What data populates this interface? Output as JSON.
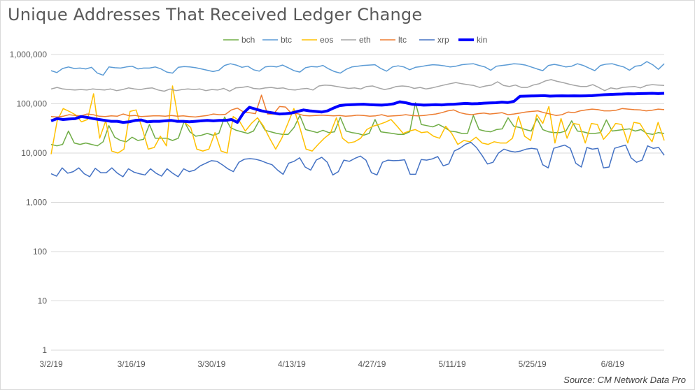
{
  "chart_data": {
    "type": "line",
    "title": "Unique Addresses That Received Ledger Change",
    "xlabel": "",
    "ylabel": "",
    "yscale": "log",
    "ylim": [
      1,
      1000000
    ],
    "y_ticks": [
      "1",
      "10",
      "100",
      "1,000",
      "10,000",
      "100,000",
      "1,000,000"
    ],
    "x_ticks": [
      "3/2/19",
      "3/16/19",
      "3/30/19",
      "4/13/19",
      "4/27/19",
      "5/11/19",
      "5/25/19",
      "6/8/19"
    ],
    "x_start": "2019-03-02",
    "x_end": "2019-06-17",
    "grid": "horizontal",
    "legend_position": "top",
    "source": "Source: CM Network Data Pro",
    "series": [
      {
        "name": "bch",
        "color": "#70ad47",
        "width": 1.5,
        "values": [
          15000,
          14000,
          15000,
          28000,
          16000,
          15000,
          16000,
          15000,
          14000,
          17000,
          36000,
          21000,
          18000,
          17000,
          21000,
          18000,
          19000,
          38000,
          20000,
          20000,
          20000,
          18000,
          20000,
          44000,
          27000,
          22000,
          23000,
          25000,
          23000,
          25000,
          54000,
          33000,
          29000,
          27000,
          25000,
          28000,
          46000,
          29000,
          27000,
          25000,
          24000,
          24000,
          33000,
          58000,
          30000,
          28000,
          26000,
          29000,
          26000,
          27000,
          53000,
          28000,
          26000,
          25000,
          23000,
          25000,
          48000,
          27000,
          26000,
          25000,
          24000,
          24000,
          27000,
          105000,
          38000,
          36000,
          34000,
          38000,
          33000,
          28000,
          27000,
          25000,
          25000,
          58000,
          30000,
          28000,
          27000,
          30000,
          31000,
          52000,
          35000,
          33000,
          30000,
          28000,
          50000,
          30000,
          27000,
          26000,
          26000,
          28000,
          45000,
          28000,
          27000,
          25000,
          25000,
          26000,
          47000,
          28000,
          29000,
          30000,
          31000,
          28000,
          30000,
          25000,
          24000,
          26000,
          25000
        ]
      },
      {
        "name": "btc",
        "color": "#5b9bd5",
        "width": 1.5,
        "values": [
          470000,
          430000,
          520000,
          560000,
          520000,
          530000,
          510000,
          550000,
          420000,
          380000,
          560000,
          540000,
          530000,
          560000,
          580000,
          510000,
          530000,
          530000,
          560000,
          510000,
          440000,
          420000,
          550000,
          570000,
          560000,
          540000,
          510000,
          480000,
          450000,
          480000,
          600000,
          650000,
          610000,
          550000,
          580000,
          490000,
          460000,
          560000,
          580000,
          560000,
          610000,
          540000,
          470000,
          440000,
          540000,
          570000,
          560000,
          600000,
          510000,
          450000,
          420000,
          500000,
          560000,
          580000,
          600000,
          610000,
          620000,
          520000,
          460000,
          560000,
          590000,
          560000,
          490000,
          550000,
          570000,
          600000,
          620000,
          610000,
          590000,
          560000,
          580000,
          620000,
          640000,
          650000,
          600000,
          560000,
          480000,
          580000,
          600000,
          620000,
          650000,
          640000,
          610000,
          560000,
          510000,
          470000,
          600000,
          630000,
          600000,
          560000,
          580000,
          650000,
          600000,
          530000,
          470000,
          600000,
          640000,
          650000,
          600000,
          560000,
          480000,
          580000,
          600000,
          720000,
          620000,
          500000,
          650000
        ]
      },
      {
        "name": "eos",
        "color": "#ffc000",
        "width": 1.5,
        "values": [
          9500,
          45000,
          80000,
          70000,
          60000,
          43000,
          48000,
          160000,
          20000,
          45000,
          11000,
          10000,
          12000,
          70000,
          75000,
          32000,
          12000,
          13000,
          22000,
          14000,
          230000,
          45000,
          42000,
          33000,
          12000,
          11000,
          12000,
          26000,
          11000,
          10000,
          55000,
          45000,
          28000,
          40000,
          52000,
          35000,
          20000,
          12000,
          20000,
          40000,
          80000,
          32000,
          12000,
          11000,
          15000,
          20000,
          25000,
          52000,
          20000,
          16000,
          17000,
          20000,
          30000,
          35000,
          38000,
          42000,
          48000,
          35000,
          25000,
          28000,
          30000,
          26000,
          27000,
          22000,
          20000,
          35000,
          25000,
          15000,
          18000,
          17000,
          21000,
          16000,
          15000,
          17000,
          16000,
          16000,
          20000,
          55000,
          22000,
          18000,
          60000,
          40000,
          88000,
          16000,
          50000,
          20000,
          40000,
          38000,
          16000,
          40000,
          38000,
          19000,
          26000,
          40000,
          38000,
          16000,
          42000,
          40000,
          25000,
          17000,
          42000,
          18000
        ]
      },
      {
        "name": "eth",
        "color": "#a5a5a5",
        "width": 1.5,
        "values": [
          200000,
          215000,
          200000,
          195000,
          190000,
          195000,
          190000,
          200000,
          195000,
          190000,
          200000,
          185000,
          195000,
          210000,
          200000,
          195000,
          205000,
          210000,
          190000,
          180000,
          200000,
          185000,
          195000,
          200000,
          195000,
          200000,
          185000,
          195000,
          190000,
          205000,
          180000,
          210000,
          215000,
          225000,
          205000,
          200000,
          210000,
          215000,
          205000,
          210000,
          195000,
          190000,
          200000,
          205000,
          190000,
          230000,
          240000,
          235000,
          225000,
          215000,
          205000,
          210000,
          200000,
          225000,
          230000,
          210000,
          195000,
          205000,
          225000,
          230000,
          225000,
          205000,
          215000,
          200000,
          210000,
          225000,
          240000,
          255000,
          270000,
          255000,
          245000,
          235000,
          215000,
          230000,
          240000,
          280000,
          235000,
          225000,
          240000,
          215000,
          215000,
          240000,
          255000,
          290000,
          310000,
          285000,
          270000,
          250000,
          235000,
          225000,
          225000,
          245000,
          215000,
          185000,
          210000,
          200000,
          215000,
          220000,
          225000,
          210000,
          235000,
          245000,
          240000,
          235000
        ]
      },
      {
        "name": "ltc",
        "color": "#ed7d31",
        "width": 1.5,
        "values": [
          55000,
          54000,
          56000,
          60000,
          58000,
          57000,
          62000,
          60000,
          56000,
          55000,
          57000,
          56000,
          62000,
          57000,
          58000,
          55000,
          56000,
          57000,
          57000,
          56000,
          58000,
          56000,
          57000,
          55000,
          54000,
          56000,
          58000,
          62000,
          60000,
          61000,
          75000,
          82000,
          68000,
          66000,
          63000,
          150000,
          62000,
          62000,
          88000,
          86000,
          64000,
          63000,
          58000,
          57000,
          58000,
          59000,
          58000,
          57000,
          58000,
          56000,
          57000,
          59000,
          58000,
          56000,
          57000,
          60000,
          56000,
          57000,
          58000,
          60000,
          58000,
          57000,
          58000,
          60000,
          62000,
          66000,
          72000,
          75000,
          66000,
          62000,
          60000,
          63000,
          65000,
          62000,
          64000,
          66000,
          60000,
          62000,
          65000,
          68000,
          70000,
          72000,
          66000,
          62000,
          58000,
          60000,
          68000,
          66000,
          72000,
          75000,
          78000,
          76000,
          72000,
          72000,
          74000,
          80000,
          78000,
          76000,
          75000,
          72000,
          74000,
          78000,
          76000
        ]
      },
      {
        "name": "xrp",
        "color": "#4472c4",
        "width": 1.5,
        "values": [
          3800,
          3400,
          5000,
          3900,
          4200,
          5000,
          3800,
          3300,
          4900,
          4000,
          4000,
          5000,
          3900,
          3300,
          4800,
          4100,
          3800,
          3600,
          4800,
          3900,
          3400,
          4800,
          3900,
          3300,
          4800,
          4200,
          4500,
          5500,
          6200,
          7000,
          6800,
          5800,
          4800,
          4200,
          6500,
          7500,
          7700,
          7500,
          7000,
          6300,
          5800,
          4500,
          3700,
          6200,
          6800,
          8000,
          5200,
          4500,
          7200,
          8200,
          6500,
          3600,
          4200,
          7200,
          6800,
          7800,
          8700,
          7200,
          4000,
          3600,
          6500,
          7200,
          7000,
          7100,
          7300,
          3700,
          3700,
          7400,
          7200,
          7600,
          8500,
          5500,
          6000,
          11000,
          12500,
          15000,
          16500,
          13000,
          9000,
          6000,
          6500,
          10000,
          12000,
          11000,
          10500,
          11000,
          12000,
          12500,
          12000,
          5800,
          5000,
          12500,
          13500,
          14500,
          12500,
          6200,
          5200,
          13000,
          12000,
          12500,
          5000,
          5200,
          12500,
          13500,
          14500,
          8000,
          6500,
          7200,
          14000,
          12500,
          13000,
          9000
        ]
      },
      {
        "name": "kin",
        "color": "#0000ff",
        "width": 4,
        "values": [
          45000,
          50000,
          48000,
          49000,
          50000,
          55000,
          53000,
          50000,
          48000,
          46000,
          44000,
          44000,
          42000,
          43000,
          46000,
          47000,
          43000,
          44000,
          44000,
          45000,
          46000,
          44000,
          44000,
          43000,
          44000,
          45000,
          46000,
          45000,
          46000,
          46000,
          48000,
          42000,
          65000,
          85000,
          78000,
          72000,
          68000,
          65000,
          62000,
          63000,
          65000,
          70000,
          75000,
          72000,
          70000,
          68000,
          72000,
          82000,
          92000,
          95000,
          96000,
          97000,
          98000,
          96000,
          95000,
          94000,
          96000,
          100000,
          110000,
          105000,
          98000,
          96000,
          94000,
          95000,
          96000,
          95000,
          97000,
          98000,
          100000,
          102000,
          100000,
          101000,
          103000,
          104000,
          105000,
          108000,
          106000,
          112000,
          142000,
          143000,
          144000,
          145000,
          146000,
          143000,
          144000,
          145000,
          144000,
          145000,
          144000,
          145000,
          146000,
          150000,
          153000,
          155000,
          157000,
          158000,
          160000,
          159000,
          161000,
          162000,
          163000,
          161000,
          163000
        ]
      }
    ]
  }
}
